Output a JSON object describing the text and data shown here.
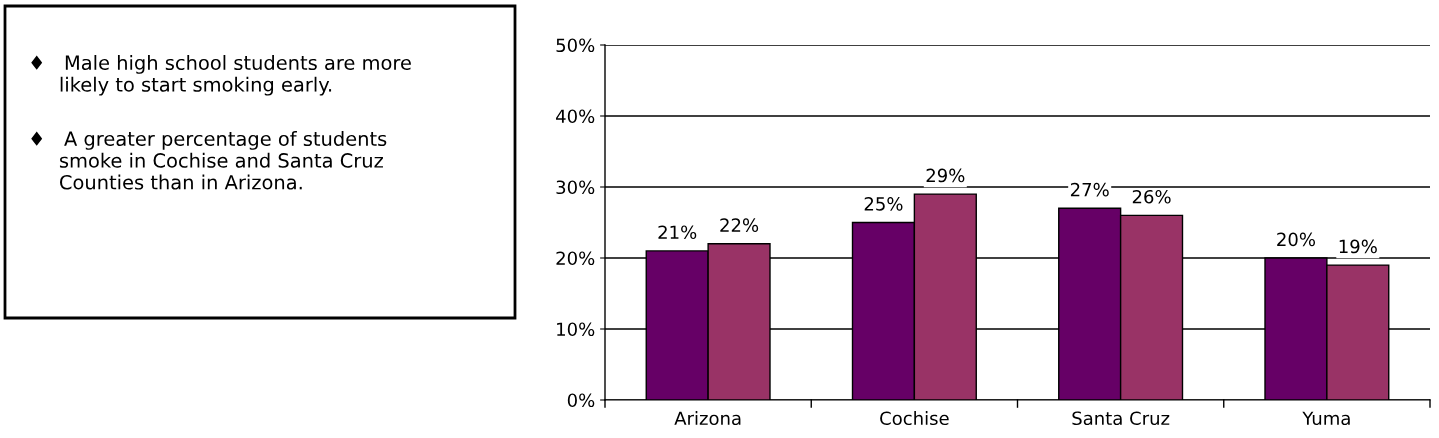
{
  "chart_data": {
    "type": "bar",
    "categories": [
      "Arizona",
      "Cochise",
      "Santa Cruz",
      "Yuma"
    ],
    "series": [
      {
        "color": "#660066",
        "values": [
          21,
          25,
          27,
          20
        ],
        "value_labels": [
          "21%",
          "25%",
          "27%",
          "20%"
        ]
      },
      {
        "color": "#993366",
        "values": [
          22,
          29,
          26,
          19
        ],
        "value_labels": [
          "22%",
          "29%",
          "26%",
          "19%"
        ]
      }
    ],
    "ylim": [
      0,
      50
    ],
    "yticks": [
      {
        "value": 0,
        "label": "0%"
      },
      {
        "value": 10,
        "label": "10%"
      },
      {
        "value": 20,
        "label": "20%"
      },
      {
        "value": 30,
        "label": "30%"
      },
      {
        "value": 40,
        "label": "40%"
      },
      {
        "value": 50,
        "label": "50%"
      }
    ],
    "grid": "y",
    "annotations": [
      "♦   Male high school students are more\n     likely to start smoking early.",
      "♦   A greater percentage of students\n     smoke in Cochise and Santa Cruz\n     Counties than in Arizona."
    ]
  }
}
